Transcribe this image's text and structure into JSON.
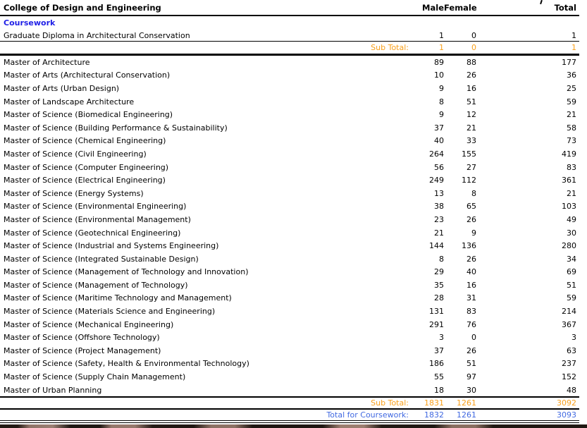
{
  "header": {
    "title": "College of Design and Engineering",
    "columns": {
      "male": "Male",
      "female": "Female",
      "total": "Total"
    }
  },
  "section_label": "Coursework",
  "groups": [
    {
      "rows": [
        {
          "label": "Graduate Diploma in Architectural Conservation",
          "male": "1",
          "female": "0",
          "total": "1"
        }
      ],
      "subtotal": {
        "label": "Sub Total:",
        "male": "1",
        "female": "0",
        "total": "1"
      }
    },
    {
      "rows": [
        {
          "label": "Master of Architecture",
          "male": "89",
          "female": "88",
          "total": "177"
        },
        {
          "label": "Master of Arts (Architectural Conservation)",
          "male": "10",
          "female": "26",
          "total": "36"
        },
        {
          "label": "Master of Arts (Urban Design)",
          "male": "9",
          "female": "16",
          "total": "25"
        },
        {
          "label": "Master of Landscape Architecture",
          "male": "8",
          "female": "51",
          "total": "59"
        },
        {
          "label": "Master of Science (Biomedical Engineering)",
          "male": "9",
          "female": "12",
          "total": "21"
        },
        {
          "label": "Master of Science (Building Performance & Sustainability)",
          "male": "37",
          "female": "21",
          "total": "58"
        },
        {
          "label": "Master of Science (Chemical Engineering)",
          "male": "40",
          "female": "33",
          "total": "73"
        },
        {
          "label": "Master of Science (Civil Engineering)",
          "male": "264",
          "female": "155",
          "total": "419"
        },
        {
          "label": "Master of Science (Computer Engineering)",
          "male": "56",
          "female": "27",
          "total": "83"
        },
        {
          "label": "Master of Science (Electrical Engineering)",
          "male": "249",
          "female": "112",
          "total": "361"
        },
        {
          "label": "Master of Science (Energy Systems)",
          "male": "13",
          "female": "8",
          "total": "21"
        },
        {
          "label": "Master of Science (Environmental Engineering)",
          "male": "38",
          "female": "65",
          "total": "103"
        },
        {
          "label": "Master of Science (Environmental Management)",
          "male": "23",
          "female": "26",
          "total": "49"
        },
        {
          "label": "Master of Science (Geotechnical Engineering)",
          "male": "21",
          "female": "9",
          "total": "30"
        },
        {
          "label": "Master of Science (Industrial and Systems Engineering)",
          "male": "144",
          "female": "136",
          "total": "280"
        },
        {
          "label": "Master of Science (Integrated Sustainable Design)",
          "male": "8",
          "female": "26",
          "total": "34"
        },
        {
          "label": "Master of Science (Management of Technology and Innovation)",
          "male": "29",
          "female": "40",
          "total": "69"
        },
        {
          "label": "Master of Science (Management of Technology)",
          "male": "35",
          "female": "16",
          "total": "51"
        },
        {
          "label": "Master of Science (Maritime Technology and Management)",
          "male": "28",
          "female": "31",
          "total": "59"
        },
        {
          "label": "Master of Science (Materials Science and Engineering)",
          "male": "131",
          "female": "83",
          "total": "214"
        },
        {
          "label": "Master of Science (Mechanical Engineering)",
          "male": "291",
          "female": "76",
          "total": "367"
        },
        {
          "label": "Master of Science (Offshore Technology)",
          "male": "3",
          "female": "0",
          "total": "3"
        },
        {
          "label": "Master of Science (Project Management)",
          "male": "37",
          "female": "26",
          "total": "63"
        },
        {
          "label": "Master of Science (Safety, Health & Environmental Technology)",
          "male": "186",
          "female": "51",
          "total": "237"
        },
        {
          "label": "Master of Science (Supply Chain Management)",
          "male": "55",
          "female": "97",
          "total": "152"
        },
        {
          "label": "Master of Urban Planning",
          "male": "18",
          "female": "30",
          "total": "48"
        }
      ],
      "subtotal": {
        "label": "Sub Total:",
        "male": "1831",
        "female": "1261",
        "total": "3092"
      }
    }
  ],
  "grand_total": {
    "label": "Total for Coursework:",
    "male": "1832",
    "female": "1261",
    "total": "3093"
  },
  "colors": {
    "section_blue": "#1f1fe6",
    "accent_blue": "#4169e1",
    "subtotal_orange": "#f9a01b",
    "rule_black": "#000000"
  }
}
